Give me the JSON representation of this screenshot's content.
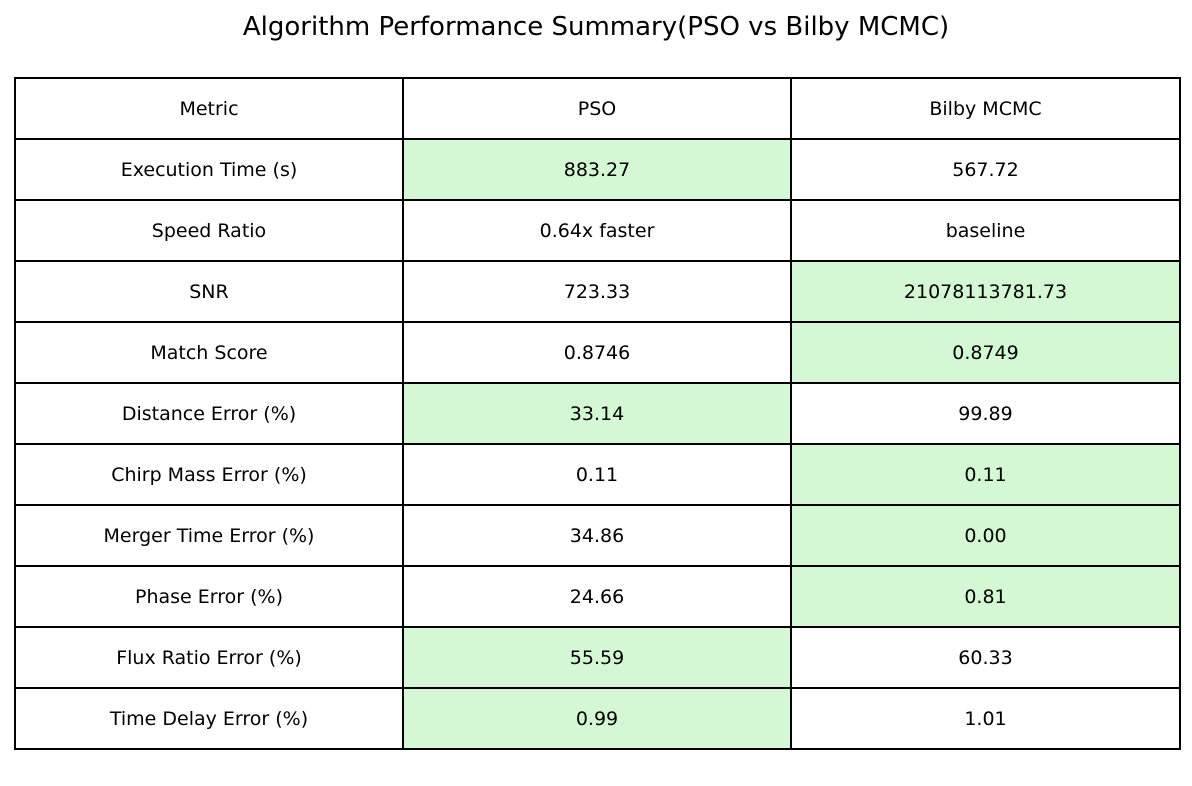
{
  "chart_data": {
    "type": "table",
    "title": "Algorithm Performance Summary(PSO vs Bilby MCMC)",
    "columns": [
      "Metric",
      "PSO",
      "Bilby MCMC"
    ],
    "rows": [
      {
        "metric": "Execution Time (s)",
        "pso": "883.27",
        "bilby": "567.72",
        "highlight": "pso"
      },
      {
        "metric": "Speed Ratio",
        "pso": "0.64x faster",
        "bilby": "baseline",
        "highlight": ""
      },
      {
        "metric": "SNR",
        "pso": "723.33",
        "bilby": "21078113781.73",
        "highlight": "bilby"
      },
      {
        "metric": "Match Score",
        "pso": "0.8746",
        "bilby": "0.8749",
        "highlight": "bilby"
      },
      {
        "metric": "Distance Error (%)",
        "pso": "33.14",
        "bilby": "99.89",
        "highlight": "pso"
      },
      {
        "metric": "Chirp Mass Error (%)",
        "pso": "0.11",
        "bilby": "0.11",
        "highlight": "bilby"
      },
      {
        "metric": "Merger Time Error (%)",
        "pso": "34.86",
        "bilby": "0.00",
        "highlight": "bilby"
      },
      {
        "metric": "Phase Error (%)",
        "pso": "24.66",
        "bilby": "0.81",
        "highlight": "bilby"
      },
      {
        "metric": "Flux Ratio Error (%)",
        "pso": "55.59",
        "bilby": "60.33",
        "highlight": "pso"
      },
      {
        "metric": "Time Delay Error (%)",
        "pso": "0.99",
        "bilby": "1.01",
        "highlight": "pso"
      }
    ],
    "colors": {
      "highlight": "#d4f7d4",
      "border": "#000000",
      "background": "#ffffff"
    }
  }
}
